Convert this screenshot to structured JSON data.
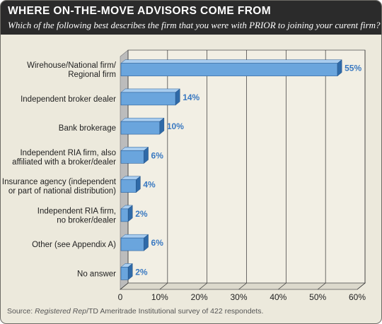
{
  "header": {
    "title": "WHERE ON-THE-MOVE ADVISORS COME FROM",
    "subtitle": "Which of the following best describes the firm that you were with PRIOR to joining your curent firm?"
  },
  "source": {
    "prefix": "Source: ",
    "publication": "Registered Rep",
    "rest": "/TD Ameritrade Institutional survey of 422 respondets."
  },
  "colors": {
    "bar_front": "#6aa5dd",
    "bar_top": "#a9cdef",
    "bar_side": "#2f6aa8",
    "value_text": "#3a79c1",
    "header_bg": "#2b2b2b",
    "plot_bg": "#f2efe4",
    "axis_wall": "#bcbcbc"
  },
  "chart_data": {
    "type": "bar",
    "orientation": "horizontal",
    "title": "WHERE ON-THE-MOVE ADVISORS COME FROM",
    "subtitle": "Which of the following best describes the firm that you were with PRIOR to joining your curent firm?",
    "categories": [
      [
        "Wirehouse/National firm/",
        "Regional firm"
      ],
      [
        "Independent broker dealer"
      ],
      [
        "Bank brokerage"
      ],
      [
        "Independent RIA firm, also",
        "affiliated with a broker/dealer"
      ],
      [
        "Insurance agency (independent",
        "or part of national distribution)"
      ],
      [
        "Independent RIA firm,",
        "no broker/dealer"
      ],
      [
        "Other (see Appendix A)"
      ],
      [
        "No answer"
      ]
    ],
    "values": [
      55,
      14,
      10,
      6,
      4,
      2,
      6,
      2
    ],
    "value_labels": [
      "55%",
      "14%",
      "10%",
      "6%",
      "4%",
      "2%",
      "6%",
      "2%"
    ],
    "xlim": [
      0,
      60
    ],
    "xticks": [
      0,
      10,
      20,
      30,
      40,
      50,
      60
    ],
    "xtick_labels": [
      "0",
      "10%",
      "20%",
      "30%",
      "40%",
      "50%",
      "60%"
    ],
    "grid": true
  }
}
